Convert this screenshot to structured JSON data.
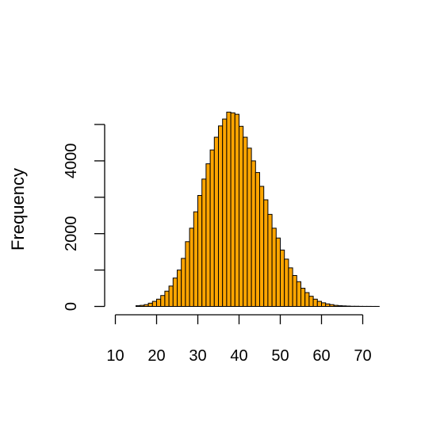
{
  "chart_data": {
    "type": "bar",
    "title": "",
    "xlabel": "",
    "ylabel": "Frequency",
    "bin_width": 1,
    "bins_start": 10,
    "xlim": [
      10,
      74
    ],
    "ylim": [
      0,
      5400
    ],
    "x_ticks": [
      10,
      20,
      30,
      40,
      50,
      60,
      70
    ],
    "y_ticks": [
      0,
      1000,
      2000,
      3000,
      4000,
      5000
    ],
    "y_tick_labels": [
      "0",
      "",
      "2000",
      "",
      "4000",
      ""
    ],
    "bar_fill": "#FFA500",
    "bar_stroke": "#000000",
    "grid": false,
    "legend": "none",
    "values": [
      0,
      0,
      0,
      0,
      0,
      20,
      30,
      50,
      90,
      140,
      200,
      300,
      420,
      560,
      780,
      1000,
      1320,
      1780,
      2150,
      2600,
      3050,
      3500,
      3920,
      4300,
      4650,
      4960,
      5150,
      5340,
      5320,
      5280,
      4950,
      4650,
      4350,
      4000,
      3680,
      3300,
      2930,
      2530,
      2150,
      1880,
      1550,
      1300,
      1060,
      850,
      680,
      500,
      380,
      280,
      200,
      140,
      100,
      70,
      50,
      30,
      20,
      15,
      10,
      5,
      5,
      3,
      2,
      2,
      1,
      1
    ]
  }
}
